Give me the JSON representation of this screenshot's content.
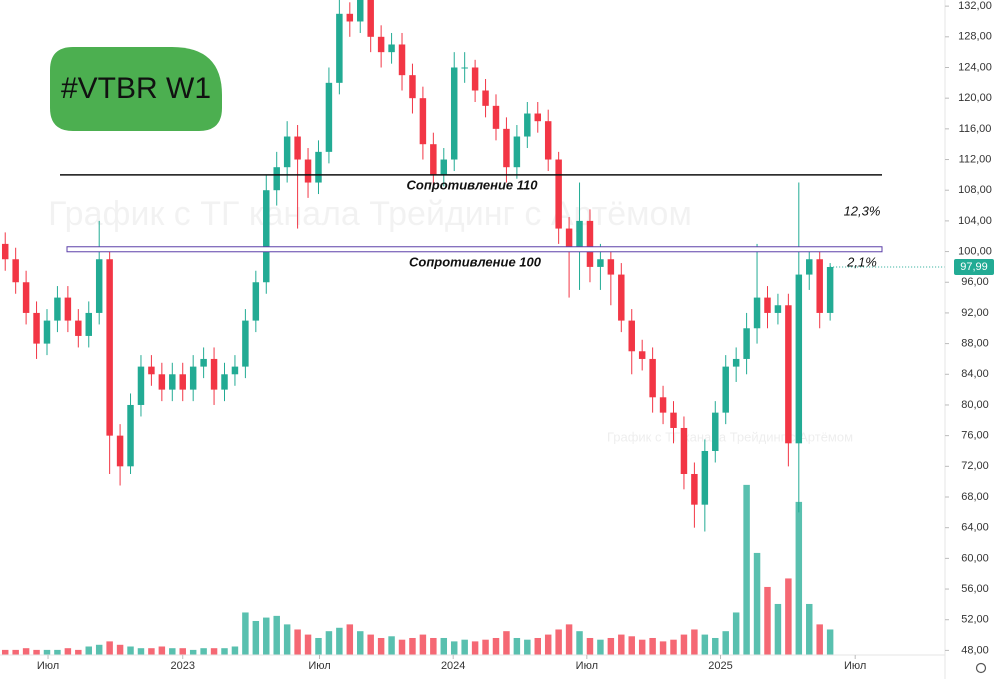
{
  "chart_data": {
    "type": "candlestick",
    "badge": "#VTBR W1",
    "watermarks": [
      "График с ТГ канала Трейдинг с Артёмом",
      "График с ТГ канала Трейдинг с Артёмом"
    ],
    "xlim": [
      -0.5,
      90
    ],
    "ylim": [
      47.4,
      132.8
    ],
    "y2lim": [
      0,
      385
    ],
    "xticks": [
      {
        "value": 4.1,
        "label": "Июл"
      },
      {
        "value": 17,
        "label": "2023"
      },
      {
        "value": 30.1,
        "label": "Июл"
      },
      {
        "value": 42.9,
        "label": "2024"
      },
      {
        "value": 55.7,
        "label": "Июл"
      },
      {
        "value": 68.5,
        "label": "2025"
      },
      {
        "value": 81.4,
        "label": "Июл"
      }
    ],
    "yticks": [
      {
        "value": 48,
        "label": "48,00"
      },
      {
        "value": 52,
        "label": "52,00"
      },
      {
        "value": 56,
        "label": "56,00"
      },
      {
        "value": 60,
        "label": "60,00"
      },
      {
        "value": 64,
        "label": "64,00"
      },
      {
        "value": 68,
        "label": "68,00"
      },
      {
        "value": 72,
        "label": "72,00"
      },
      {
        "value": 76,
        "label": "76,00"
      },
      {
        "value": 80,
        "label": "80,00"
      },
      {
        "value": 84,
        "label": "84,00"
      },
      {
        "value": 88,
        "label": "88,00"
      },
      {
        "value": 92,
        "label": "92,00"
      },
      {
        "value": 96,
        "label": "96,00"
      },
      {
        "value": 100,
        "label": "100,00"
      },
      {
        "value": 104,
        "label": "104,00"
      },
      {
        "value": 108,
        "label": "108,00"
      },
      {
        "value": 112,
        "label": "112,00"
      },
      {
        "value": 116,
        "label": "116,00"
      },
      {
        "value": 120,
        "label": "120,00"
      },
      {
        "value": 124,
        "label": "124,00"
      },
      {
        "value": 128,
        "label": "128,00"
      },
      {
        "value": 132,
        "label": "132,00"
      }
    ],
    "up_color": "#22ab94",
    "down_color": "#f23645",
    "open": [
      101,
      99,
      96,
      92,
      88,
      91,
      94,
      91,
      89,
      92,
      99,
      76,
      72,
      80,
      85,
      84,
      82,
      84,
      82,
      85,
      86,
      82,
      84,
      85,
      91,
      96,
      108,
      111,
      115,
      112,
      109,
      113,
      122,
      131,
      130,
      133,
      128,
      126,
      127,
      123,
      120,
      114,
      110,
      112,
      124,
      124,
      121,
      119,
      116,
      111,
      115,
      118,
      117,
      112,
      103,
      100,
      104,
      98,
      99,
      97,
      91,
      87,
      86,
      81,
      79,
      77,
      71,
      67,
      74,
      79,
      85,
      86,
      90,
      94,
      92,
      93,
      75,
      97,
      99,
      92
    ],
    "high": [
      102.5,
      100.5,
      97.5,
      93.5,
      92.5,
      95.5,
      95.5,
      92.5,
      93.5,
      104,
      100,
      77.5,
      81.5,
      86.5,
      86.5,
      85.5,
      85.5,
      85.5,
      86.5,
      87.5,
      87.5,
      85.5,
      86.5,
      92.5,
      97.5,
      110,
      113,
      117,
      116.5,
      113.5,
      114.5,
      124,
      133,
      132.5,
      135,
      134.5,
      129.5,
      128.5,
      128.5,
      124.5,
      121.5,
      115.5,
      113.5,
      126,
      126,
      125,
      122.5,
      120.5,
      117.5,
      116.5,
      119.5,
      119.5,
      118.5,
      113,
      104.5,
      109,
      105.5,
      101,
      100,
      98.5,
      92.5,
      88.5,
      87.5,
      82.5,
      80.5,
      78.5,
      72.5,
      75.5,
      80.5,
      86.5,
      87.5,
      92,
      101,
      95.5,
      94.5,
      94.5,
      109,
      100.5,
      100,
      98.5
    ],
    "low": [
      97.5,
      94.5,
      90.5,
      86,
      86.5,
      89.5,
      89.5,
      87.5,
      87.5,
      90.5,
      71,
      69.5,
      71,
      78.5,
      82.5,
      80.5,
      80.5,
      80.5,
      80.5,
      83.5,
      80,
      80.5,
      82.5,
      83.5,
      89.5,
      94.5,
      106,
      109,
      103,
      107,
      107.5,
      111.5,
      120.5,
      128,
      128.5,
      126,
      124,
      124.5,
      121,
      118,
      112,
      108.5,
      108.5,
      110.5,
      122,
      119.5,
      117.5,
      114.5,
      109,
      109.5,
      113.5,
      115.5,
      110.5,
      101,
      94,
      95,
      96,
      95,
      93,
      89.5,
      84,
      84.5,
      79,
      77.5,
      75,
      69,
      64,
      63.5,
      72.5,
      77.5,
      83,
      84,
      88,
      90,
      90.5,
      72,
      66,
      95,
      90,
      91
    ],
    "close": [
      99,
      96,
      92,
      88,
      91,
      94,
      91,
      89,
      92,
      99,
      76,
      72,
      80,
      85,
      84,
      82,
      84,
      82,
      85,
      86,
      82,
      84,
      85,
      91,
      96,
      108,
      111,
      115,
      112,
      109,
      113,
      122,
      131,
      130,
      133,
      128,
      126,
      127,
      123,
      120,
      114,
      110,
      112,
      124,
      124,
      121,
      119,
      116,
      111,
      115,
      118,
      117,
      112,
      103,
      100,
      104,
      98,
      99,
      97,
      91,
      87,
      86,
      81,
      79,
      77,
      71,
      67,
      74,
      79,
      85,
      86,
      90,
      94,
      92,
      93,
      75,
      97,
      99,
      92,
      97.99
    ],
    "volume": [
      3,
      3,
      4,
      3,
      3,
      3,
      4,
      3,
      5,
      6,
      8,
      6,
      5,
      4,
      4,
      5,
      4,
      4,
      3,
      4,
      4,
      4,
      5,
      25,
      20,
      22,
      23,
      18,
      15,
      12,
      10,
      14,
      16,
      18,
      14,
      12,
      10,
      11,
      9,
      10,
      12,
      10,
      10,
      8,
      9,
      8,
      9,
      10,
      14,
      10,
      9,
      10,
      12,
      15,
      18,
      14,
      10,
      9,
      10,
      12,
      11,
      9,
      10,
      8,
      9,
      12,
      15,
      12,
      10,
      14,
      25,
      100,
      60,
      40,
      30,
      45,
      90,
      30,
      18,
      15
    ],
    "last_price_label": "97,99",
    "levels": [
      {
        "value": 110,
        "label": "Сопротивление 110"
      },
      {
        "value": 100.3,
        "label": "Сопротивление 100"
      }
    ],
    "annotations": [
      "12,3%",
      "2,1%"
    ]
  }
}
